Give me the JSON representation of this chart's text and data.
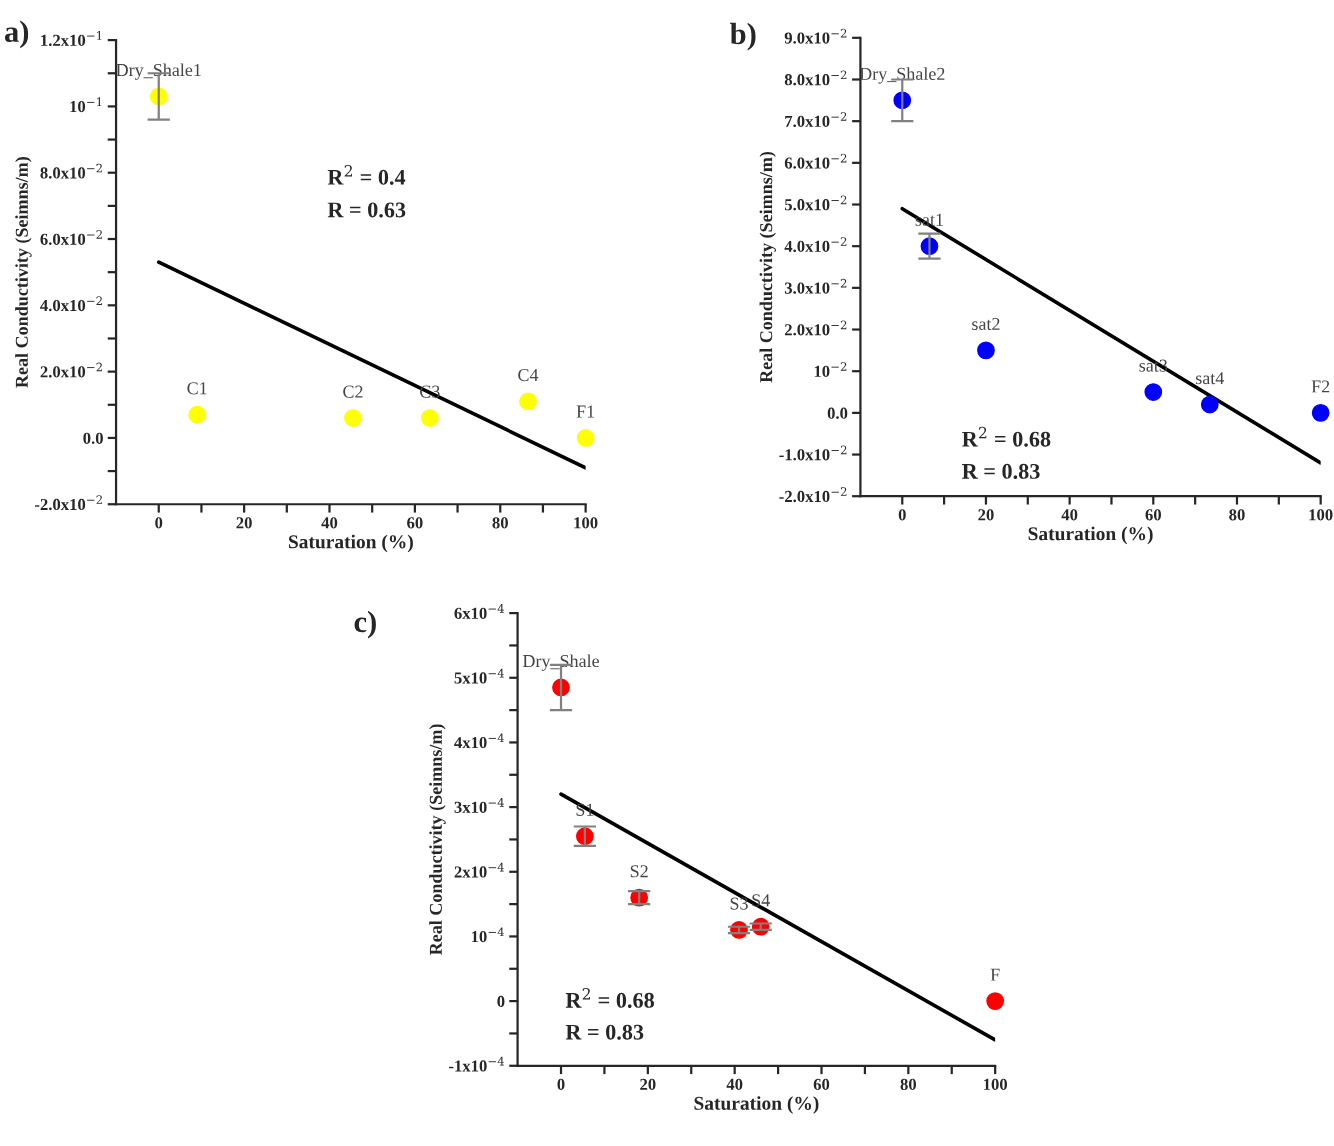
{
  "chart_data": [
    {
      "type": "scatter",
      "title": "a)",
      "xlabel": "Saturation (%)",
      "ylabel": "Real Conductivity (Seimns/m)",
      "xlim": [
        -10,
        100
      ],
      "xticks": [
        0,
        {
          "value": 10,
          "label": null
        },
        20,
        {
          "value": 30,
          "label": null
        },
        40,
        {
          "value": 50,
          "label": null
        },
        60,
        {
          "value": 70,
          "label": null
        },
        80,
        {
          "value": 90,
          "label": null
        },
        100
      ],
      "ylim": [
        -0.02,
        0.12
      ],
      "yticks": [
        {
          "value": -0.02,
          "label": "-2.0x10$^{−2}$"
        },
        {
          "value": -0.01,
          "label": null
        },
        {
          "value": 0,
          "label": "0.0"
        },
        {
          "value": 0.01,
          "label": null
        },
        {
          "value": 0.02,
          "label": "2.0x10$^{−2}$"
        },
        {
          "value": 0.03,
          "label": null
        },
        {
          "value": 0.04,
          "label": "4.0x10$^{−2}$"
        },
        {
          "value": 0.05,
          "label": null
        },
        {
          "value": 0.06,
          "label": "6.0x10$^{−2}$"
        },
        {
          "value": 0.07,
          "label": null
        },
        {
          "value": 0.08,
          "label": "8.0x10$^{−2}$"
        },
        {
          "value": 0.09,
          "label": null
        },
        {
          "value": 0.1,
          "label": "10$^{−1}$"
        },
        {
          "value": 0.11,
          "label": null
        },
        {
          "value": 0.12,
          "label": "1.2x10$^{−1}$"
        }
      ],
      "series": [
        {
          "type": "scatter",
          "color": "#ffff00",
          "x": [
            0,
            9,
            45.5,
            63.5,
            86.5,
            100
          ],
          "values": [
            0.103,
            0.007,
            0.006,
            0.006,
            0.011,
            0.0
          ],
          "errors": [
            0.007,
            null,
            null,
            null,
            null,
            null
          ],
          "marker": "circle"
        },
        {
          "type": "line",
          "color": "#000000",
          "x": [
            0,
            100
          ],
          "values": [
            0.053,
            -0.009
          ],
          "marker": "none",
          "line_style": "solid"
        }
      ],
      "annotations": [
        {
          "text": "Dry_Shale1",
          "x": 0,
          "y": 0.103
        },
        {
          "text": "C1",
          "x": 9,
          "y": 0.007
        },
        {
          "text": "C2",
          "x": 45.5,
          "y": 0.006
        },
        {
          "text": "C3",
          "x": 63.5,
          "y": 0.006
        },
        {
          "text": "C4",
          "x": 86.5,
          "y": 0.011
        },
        {
          "text": "F1",
          "x": 100,
          "y": 0.0
        },
        "R$^{2}$ = 0.4",
        "R = 0.63"
      ],
      "grid": false,
      "legend": false
    },
    {
      "type": "scatter",
      "title": "b)",
      "xlabel": "Saturation (%)",
      "ylabel": "Real Conductivity (Seimns/m)",
      "xlim": [
        -10,
        100
      ],
      "xticks": [
        0,
        {
          "value": 10,
          "label": null
        },
        20,
        {
          "value": 30,
          "label": null
        },
        40,
        {
          "value": 50,
          "label": null
        },
        60,
        {
          "value": 70,
          "label": null
        },
        80,
        {
          "value": 90,
          "label": null
        },
        100
      ],
      "ylim": [
        -0.02,
        0.09
      ],
      "yticks": [
        {
          "value": -0.02,
          "label": "-2.0x10$^{−2}$"
        },
        {
          "value": -0.01,
          "label": "-1.0x10$^{−2}$"
        },
        {
          "value": 0,
          "label": "0.0"
        },
        {
          "value": 0.01,
          "label": "10$^{−2}$"
        },
        {
          "value": 0.02,
          "label": "2.0x10$^{−2}$"
        },
        {
          "value": 0.03,
          "label": "3.0x10$^{−2}$"
        },
        {
          "value": 0.04,
          "label": "4.0x10$^{−2}$"
        },
        {
          "value": 0.05,
          "label": "5.0x10$^{−2}$"
        },
        {
          "value": 0.06,
          "label": "6.0x10$^{−2}$"
        },
        {
          "value": 0.07,
          "label": "7.0x10$^{−2}$"
        },
        {
          "value": 0.08,
          "label": "8.0x10$^{−2}$"
        },
        {
          "value": 0.09,
          "label": "9.0x10$^{−2}$"
        }
      ],
      "series": [
        {
          "type": "scatter",
          "color": "#0000ff",
          "x": [
            0,
            6.5,
            20,
            60,
            73.5,
            100
          ],
          "values": [
            0.075,
            0.04,
            0.015,
            0.005,
            0.002,
            0.0
          ],
          "errors": [
            0.005,
            0.003,
            null,
            null,
            null,
            null
          ],
          "marker": "circle"
        },
        {
          "type": "line",
          "color": "#000000",
          "x": [
            0,
            100
          ],
          "values": [
            0.049,
            -0.012
          ],
          "marker": "none",
          "line_style": "solid"
        }
      ],
      "annotations": [
        {
          "text": "Dry_Shale2",
          "x": 0,
          "y": 0.075
        },
        {
          "text": "sat1",
          "x": 6.5,
          "y": 0.04
        },
        {
          "text": "sat2",
          "x": 20,
          "y": 0.015
        },
        {
          "text": "sat3",
          "x": 60,
          "y": 0.005
        },
        {
          "text": "sat4",
          "x": 73.5,
          "y": 0.002
        },
        {
          "text": "F2",
          "x": 100,
          "y": 0.0
        },
        "R$^{2}$ = 0.68",
        "R = 0.83"
      ],
      "grid": false,
      "legend": false
    },
    {
      "type": "scatter",
      "title": "c)",
      "xlabel": "Saturation (%)",
      "ylabel": "Real Conductivity (Seimns/m)",
      "xlim": [
        -10,
        100
      ],
      "xticks": [
        0,
        {
          "value": 10,
          "label": null
        },
        20,
        {
          "value": 30,
          "label": null
        },
        40,
        {
          "value": 50,
          "label": null
        },
        60,
        {
          "value": 70,
          "label": null
        },
        80,
        {
          "value": 90,
          "label": null
        },
        100
      ],
      "ylim": [
        -0.0001,
        0.0006
      ],
      "yticks": [
        {
          "value": -0.0001,
          "label": "-1x10$^{−4}$"
        },
        {
          "value": -5e-05,
          "label": null
        },
        {
          "value": 0,
          "label": "0"
        },
        {
          "value": 5e-05,
          "label": null
        },
        {
          "value": 0.0001,
          "label": "10$^{−4}$"
        },
        {
          "value": 0.00015,
          "label": null
        },
        {
          "value": 0.0002,
          "label": "2x10$^{−4}$"
        },
        {
          "value": 0.00025,
          "label": null
        },
        {
          "value": 0.0003,
          "label": "3x10$^{−4}$"
        },
        {
          "value": 0.00035,
          "label": null
        },
        {
          "value": 0.0004,
          "label": "4x10$^{−4}$"
        },
        {
          "value": 0.00045,
          "label": null
        },
        {
          "value": 0.0005,
          "label": "5x10$^{−4}$"
        },
        {
          "value": 0.00055,
          "label": null
        },
        {
          "value": 0.0006,
          "label": "6x10$^{−4}$"
        }
      ],
      "series": [
        {
          "type": "scatter",
          "color": "#ff0000",
          "x": [
            0,
            5.5,
            18,
            41,
            46,
            100
          ],
          "values": [
            0.000485,
            0.000255,
            0.00016,
            0.00011,
            0.000115,
            0.0
          ],
          "errors": [
            3.5e-05,
            1.5e-05,
            1e-05,
            5e-06,
            5e-06,
            null
          ],
          "marker": "circle"
        },
        {
          "type": "line",
          "color": "#000000",
          "x": [
            0,
            100
          ],
          "values": [
            0.00032,
            -6e-05
          ],
          "marker": "none",
          "line_style": "solid"
        }
      ],
      "annotations": [
        {
          "text": "Dry_Shale",
          "x": 0,
          "y": 0.000485
        },
        {
          "text": "S1",
          "x": 5.5,
          "y": 0.000255
        },
        {
          "text": "S2",
          "x": 18,
          "y": 0.00016
        },
        {
          "text": "S3",
          "x": 41,
          "y": 0.00011
        },
        {
          "text": "S4",
          "x": 46,
          "y": 0.000115
        },
        {
          "text": "F",
          "x": 100,
          "y": 0.0
        },
        "R$^{2}$ = 0.68",
        "R = 0.83"
      ],
      "grid": false,
      "legend": false
    }
  ]
}
